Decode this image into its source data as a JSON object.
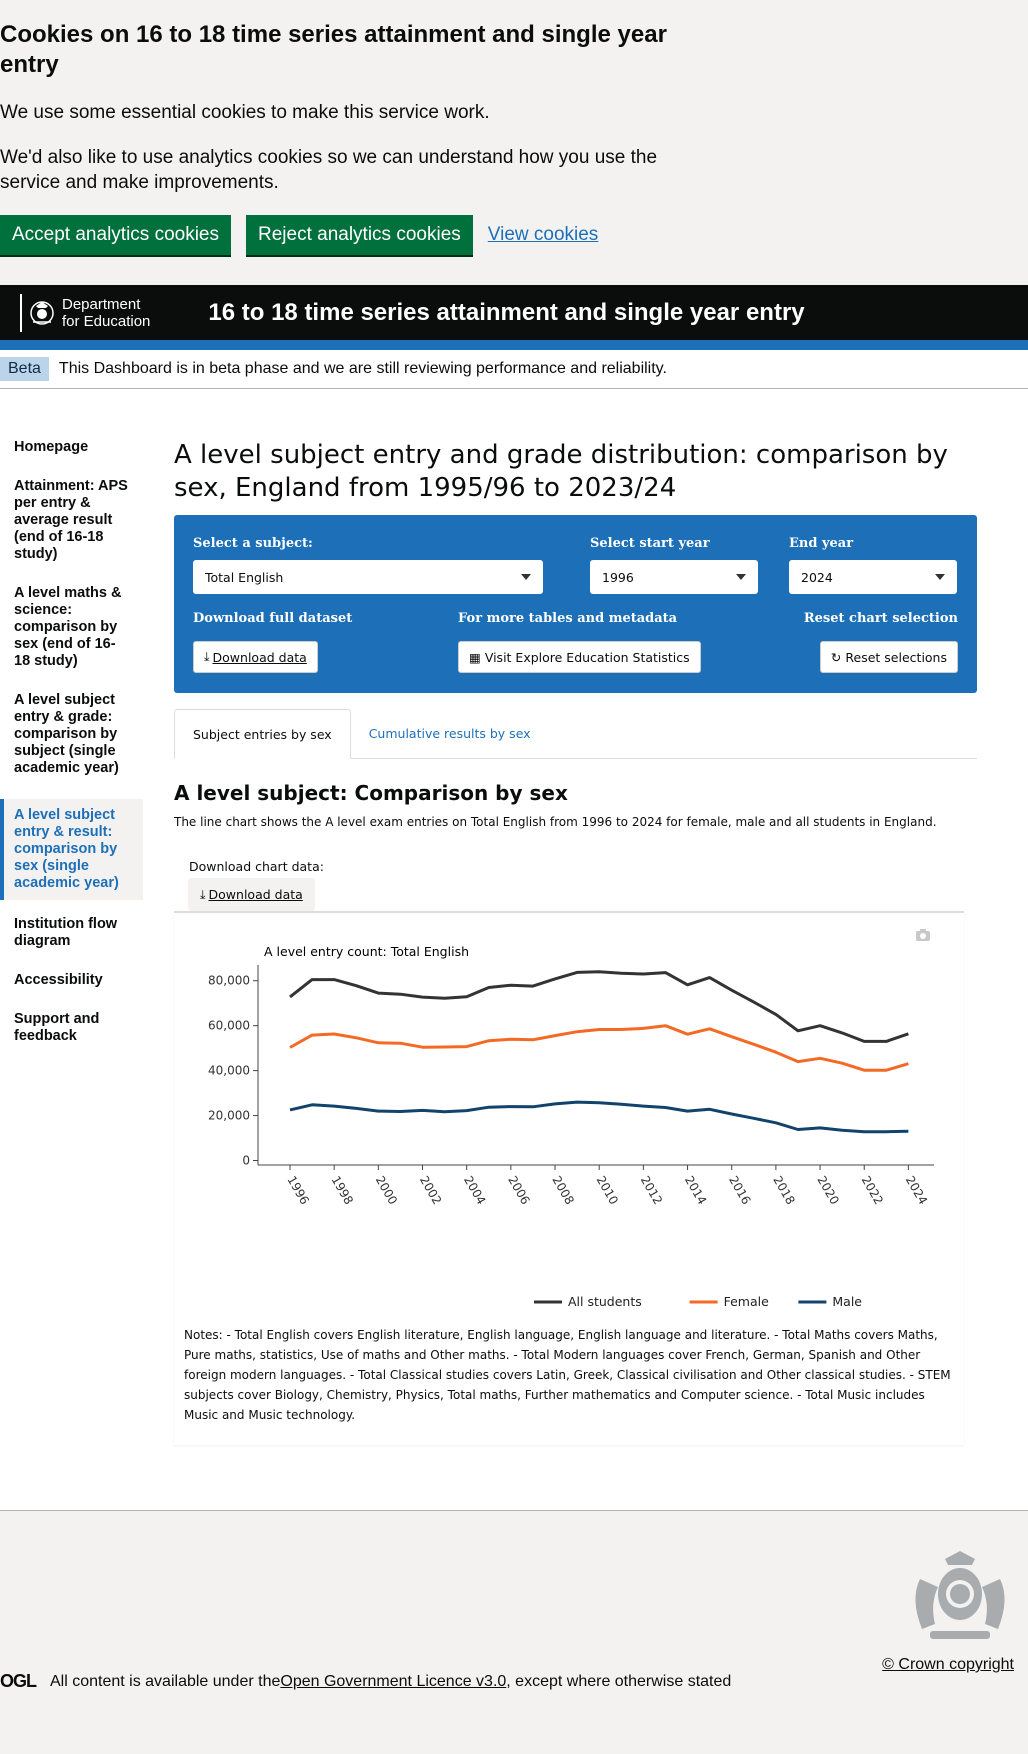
{
  "cookies": {
    "title": "Cookies on 16 to 18 time series attainment and single year entry",
    "p1": "We use some essential cookies to make this service work.",
    "p2": "We'd also like to use analytics cookies so we can understand how you use the service and make improvements.",
    "accept": "Accept analytics cookies",
    "reject": "Reject analytics cookies",
    "view": "View cookies"
  },
  "header": {
    "org_line1": "Department",
    "org_line2": "for Education",
    "title": "16 to 18 time series attainment and single year entry"
  },
  "beta": {
    "tag": "Beta",
    "text": "This Dashboard is in beta phase and we are still reviewing performance and reliability."
  },
  "sidebar": {
    "items": [
      {
        "label": "Homepage"
      },
      {
        "label": "Attainment: APS per entry & average result (end of 16-18 study)"
      },
      {
        "label": "A level maths & science: comparison by sex (end of 16-18 study)"
      },
      {
        "label": "A level subject entry & grade: comparison by subject (single academic year)"
      },
      {
        "label": "A level subject entry & result: comparison by sex (single academic year)"
      },
      {
        "label": "Institution flow diagram"
      },
      {
        "label": "Accessibility"
      },
      {
        "label": "Support and feedback"
      }
    ]
  },
  "main": {
    "title": "A level subject entry and grade distribution: comparison by sex, England from 1995/96 to 2023/24",
    "filters": {
      "subject_label": "Select a subject:",
      "subject_value": "Total English",
      "start_label": "Select start year",
      "start_value": "1996",
      "end_label": "End year",
      "end_value": "2024",
      "download_label": "Download full dataset",
      "download_btn": "Download data",
      "more_label": "For more tables and metadata",
      "more_btn": "Visit Explore Education Statistics",
      "reset_label": "Reset chart selection",
      "reset_btn": "Reset selections"
    },
    "tabs": [
      {
        "label": "Subject entries by sex"
      },
      {
        "label": "Cumulative results by sex"
      }
    ],
    "section_title": "A level subject: Comparison by sex",
    "section_desc": "The line chart shows the A level exam entries on Total English from 1996 to 2024 for female, male and all students in England.",
    "download_chart_label": "Download chart data:",
    "download_chart_btn": "Download data",
    "notes": "Notes: - Total English covers English literature, English language, English language and literature. - Total Maths covers Maths, Pure maths, statistics, Use of maths and Other maths. - Total Modern languages cover French, German, Spanish and Other foreign modern languages. - Total Classical studies covers Latin, Greek, Classical civilisation and Other classical studies. - STEM subjects cover Biology, Chemistry, Physics, Total maths, Further mathematics and Computer science. - Total Music includes Music and Music technology."
  },
  "chart_data": {
    "type": "line",
    "title": "A level entry count:  Total English",
    "x": [
      1996,
      1997,
      1998,
      1999,
      2000,
      2001,
      2002,
      2003,
      2004,
      2005,
      2006,
      2007,
      2008,
      2009,
      2010,
      2011,
      2012,
      2013,
      2014,
      2015,
      2016,
      2017,
      2018,
      2019,
      2020,
      2021,
      2022,
      2023,
      2024
    ],
    "xticks": [
      "1996",
      "1998",
      "2000",
      "2002",
      "2004",
      "2006",
      "2008",
      "2010",
      "2012",
      "2014",
      "2016",
      "2018",
      "2020",
      "2022",
      "2024"
    ],
    "yticks": [
      "0",
      "20,000",
      "40,000",
      "60,000",
      "80,000"
    ],
    "ylim": [
      -2000,
      87000
    ],
    "legend_position": "bottom",
    "series": [
      {
        "name": "All students",
        "color": "#333333",
        "values": [
          72800,
          80500,
          80500,
          77800,
          74500,
          74000,
          72700,
          72200,
          72900,
          77000,
          78000,
          77600,
          80800,
          83700,
          84000,
          83300,
          83000,
          83600,
          78200,
          81400,
          75800,
          70500,
          65000,
          57700,
          60000,
          56800,
          53000,
          53000,
          56400
        ]
      },
      {
        "name": "Female",
        "color": "#f46a25",
        "values": [
          50300,
          55800,
          56300,
          54600,
          52400,
          52200,
          50400,
          50500,
          50700,
          53300,
          54000,
          53700,
          55600,
          57300,
          58300,
          58300,
          58800,
          60000,
          56200,
          58600,
          55100,
          51700,
          48200,
          44000,
          45500,
          43300,
          40200,
          40200,
          43100
        ]
      },
      {
        "name": "Male",
        "color": "#12436d",
        "values": [
          22500,
          24800,
          24200,
          23200,
          22000,
          21800,
          22300,
          21700,
          22200,
          23700,
          24000,
          23900,
          25200,
          26000,
          25700,
          25000,
          24200,
          23600,
          22000,
          22800,
          20700,
          18800,
          16800,
          13800,
          14500,
          13500,
          12800,
          12800,
          13000
        ]
      }
    ]
  },
  "footer": {
    "ogl_logo": "OGL",
    "licence_pre": "All content is available under the ",
    "licence_link": "Open Government Licence v3.0",
    "licence_post": " , except where otherwise stated",
    "copyright": "© Crown copyright"
  }
}
